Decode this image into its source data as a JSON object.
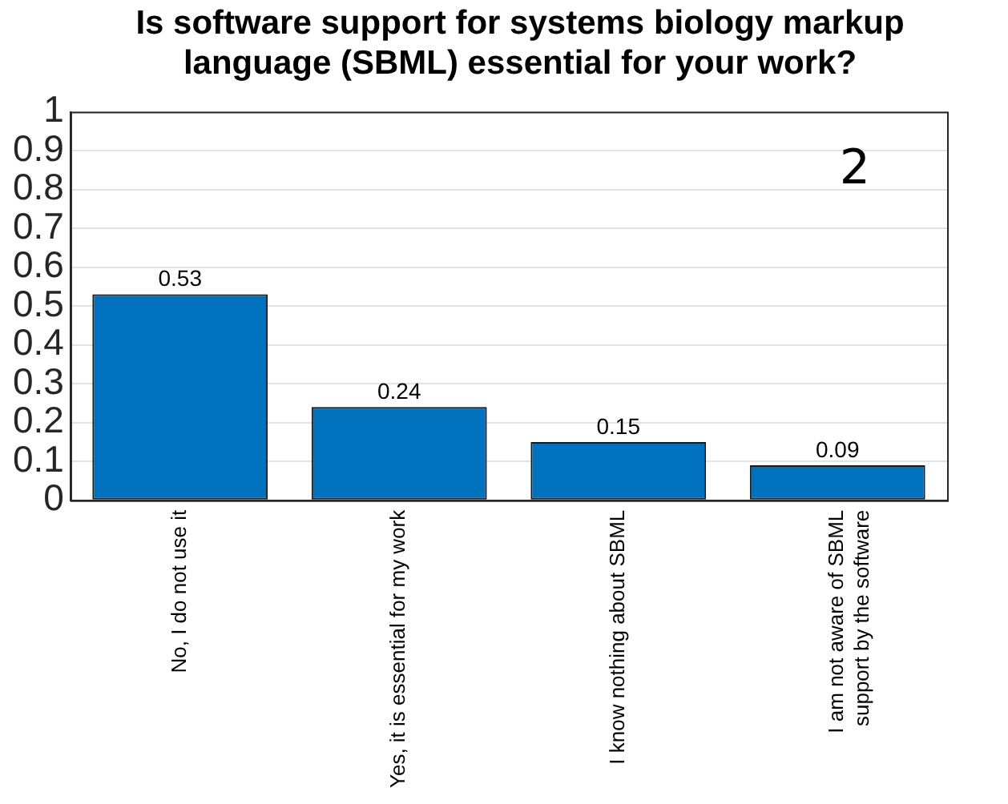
{
  "chart_data": {
    "type": "bar",
    "title": "Is software support for systems biology markup language (SBML) essential for your work?",
    "categories": [
      "No, I do not use it",
      "Yes, it is essential for my work",
      "I know nothing about SBML",
      "I am not aware of SBML support by the software"
    ],
    "values": [
      0.53,
      0.24,
      0.15,
      0.09
    ],
    "color": "#0072bd",
    "ylim": [
      0,
      1
    ],
    "yticks": [
      0,
      0.1,
      0.2,
      0.3,
      0.4,
      0.5,
      0.6,
      0.7,
      0.8,
      0.9,
      1
    ],
    "grid": "y",
    "data_labels": true,
    "legend": false,
    "annotations": [
      "2"
    ]
  }
}
